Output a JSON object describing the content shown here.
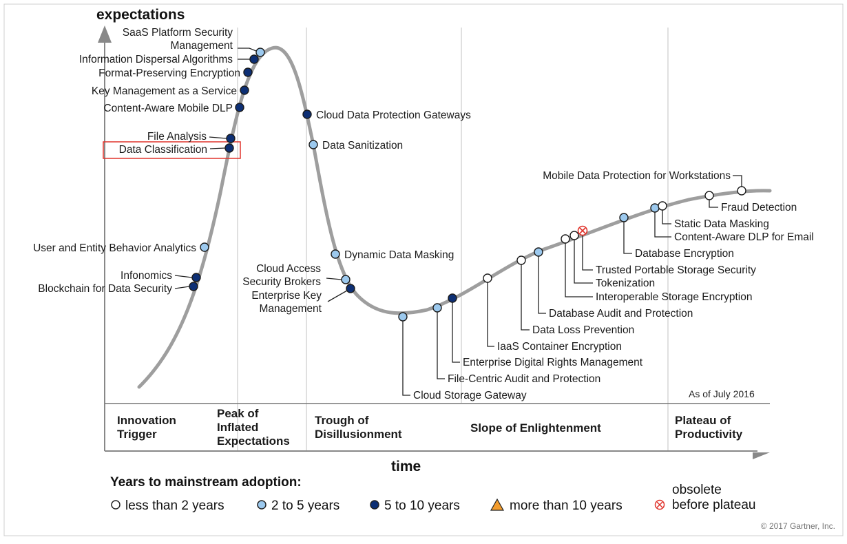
{
  "chart_data": {
    "type": "scatter",
    "x_axis_label": "time",
    "y_axis_label": "expectations",
    "as_of": "As of July 2016",
    "copyright": "© 2017 Gartner, Inc.",
    "phases": [
      {
        "lines": [
          "Innovation",
          "Trigger"
        ]
      },
      {
        "lines": [
          "Peak of",
          "Inflated",
          "Expectations"
        ]
      },
      {
        "lines": [
          "Trough of",
          "Disillusionment"
        ]
      },
      {
        "lines": [
          "Slope of Enlightenment"
        ]
      },
      {
        "lines": [
          "Plateau of",
          "Productivity"
        ]
      }
    ],
    "legend": {
      "title": "Years to mainstream adoption:",
      "items": [
        {
          "key": "lt2",
          "label": "less than 2 years",
          "color": "#ffffff"
        },
        {
          "key": "2to5",
          "label": "2 to 5 years",
          "color": "#9cc9ee"
        },
        {
          "key": "5to10",
          "label": "5 to 10 years",
          "color": "#0d2f74"
        },
        {
          "key": "gt10",
          "label": "more than 10 years",
          "color": "#f39c2d"
        },
        {
          "key": "obsolete",
          "label_lines": [
            "obsolete",
            "before plateau"
          ],
          "color": "#e0332b"
        }
      ]
    },
    "technologies": [
      {
        "name": "SaaS Platform Security Management",
        "category": "2to5",
        "phase": "Peak of Inflated Expectations"
      },
      {
        "name": "Information Dispersal Algorithms",
        "category": "5to10",
        "phase": "Peak of Inflated Expectations"
      },
      {
        "name": "Format-Preserving Encryption",
        "category": "5to10",
        "phase": "Peak of Inflated Expectations"
      },
      {
        "name": "Key Management as a Service",
        "category": "5to10",
        "phase": "Peak of Inflated Expectations"
      },
      {
        "name": "Content-Aware Mobile DLP",
        "category": "5to10",
        "phase": "Peak of Inflated Expectations"
      },
      {
        "name": "File Analysis",
        "category": "5to10",
        "phase": "Peak of Inflated Expectations"
      },
      {
        "name": "Data Classification",
        "category": "5to10",
        "phase": "Innovation Trigger",
        "highlighted": true
      },
      {
        "name": "User and Entity Behavior Analytics",
        "category": "2to5",
        "phase": "Innovation Trigger"
      },
      {
        "name": "Infonomics",
        "category": "5to10",
        "phase": "Innovation Trigger"
      },
      {
        "name": "Blockchain for Data Security",
        "category": "5to10",
        "phase": "Innovation Trigger"
      },
      {
        "name": "Cloud Data Protection Gateways",
        "category": "5to10",
        "phase": "Trough of Disillusionment"
      },
      {
        "name": "Data Sanitization",
        "category": "2to5",
        "phase": "Trough of Disillusionment"
      },
      {
        "name": "Dynamic Data Masking",
        "category": "2to5",
        "phase": "Trough of Disillusionment"
      },
      {
        "name": "Cloud Access Security Brokers",
        "category": "2to5",
        "phase": "Trough of Disillusionment"
      },
      {
        "name": "Enterprise Key Management",
        "category": "5to10",
        "phase": "Trough of Disillusionment"
      },
      {
        "name": "Cloud Storage Gateway",
        "category": "2to5",
        "phase": "Trough of Disillusionment"
      },
      {
        "name": "File-Centric Audit and Protection",
        "category": "2to5",
        "phase": "Slope of Enlightenment"
      },
      {
        "name": "Enterprise Digital Rights Management",
        "category": "5to10",
        "phase": "Slope of Enlightenment"
      },
      {
        "name": "IaaS Container Encryption",
        "category": "lt2",
        "phase": "Slope of Enlightenment"
      },
      {
        "name": "Data Loss Prevention",
        "category": "lt2",
        "phase": "Slope of Enlightenment"
      },
      {
        "name": "Database Audit and Protection",
        "category": "2to5",
        "phase": "Slope of Enlightenment"
      },
      {
        "name": "Interoperable Storage Encryption",
        "category": "lt2",
        "phase": "Slope of Enlightenment"
      },
      {
        "name": "Tokenization",
        "category": "lt2",
        "phase": "Slope of Enlightenment"
      },
      {
        "name": "Trusted Portable Storage Security",
        "category": "obsolete",
        "phase": "Slope of Enlightenment"
      },
      {
        "name": "Database Encryption",
        "category": "2to5",
        "phase": "Slope of Enlightenment"
      },
      {
        "name": "Content-Aware DLP for Email",
        "category": "2to5",
        "phase": "Plateau of Productivity"
      },
      {
        "name": "Static Data Masking",
        "category": "lt2",
        "phase": "Plateau of Productivity"
      },
      {
        "name": "Fraud Detection",
        "category": "lt2",
        "phase": "Plateau of Productivity"
      },
      {
        "name": "Mobile Data Protection for Workstations",
        "category": "lt2",
        "phase": "Plateau of Productivity"
      }
    ]
  }
}
